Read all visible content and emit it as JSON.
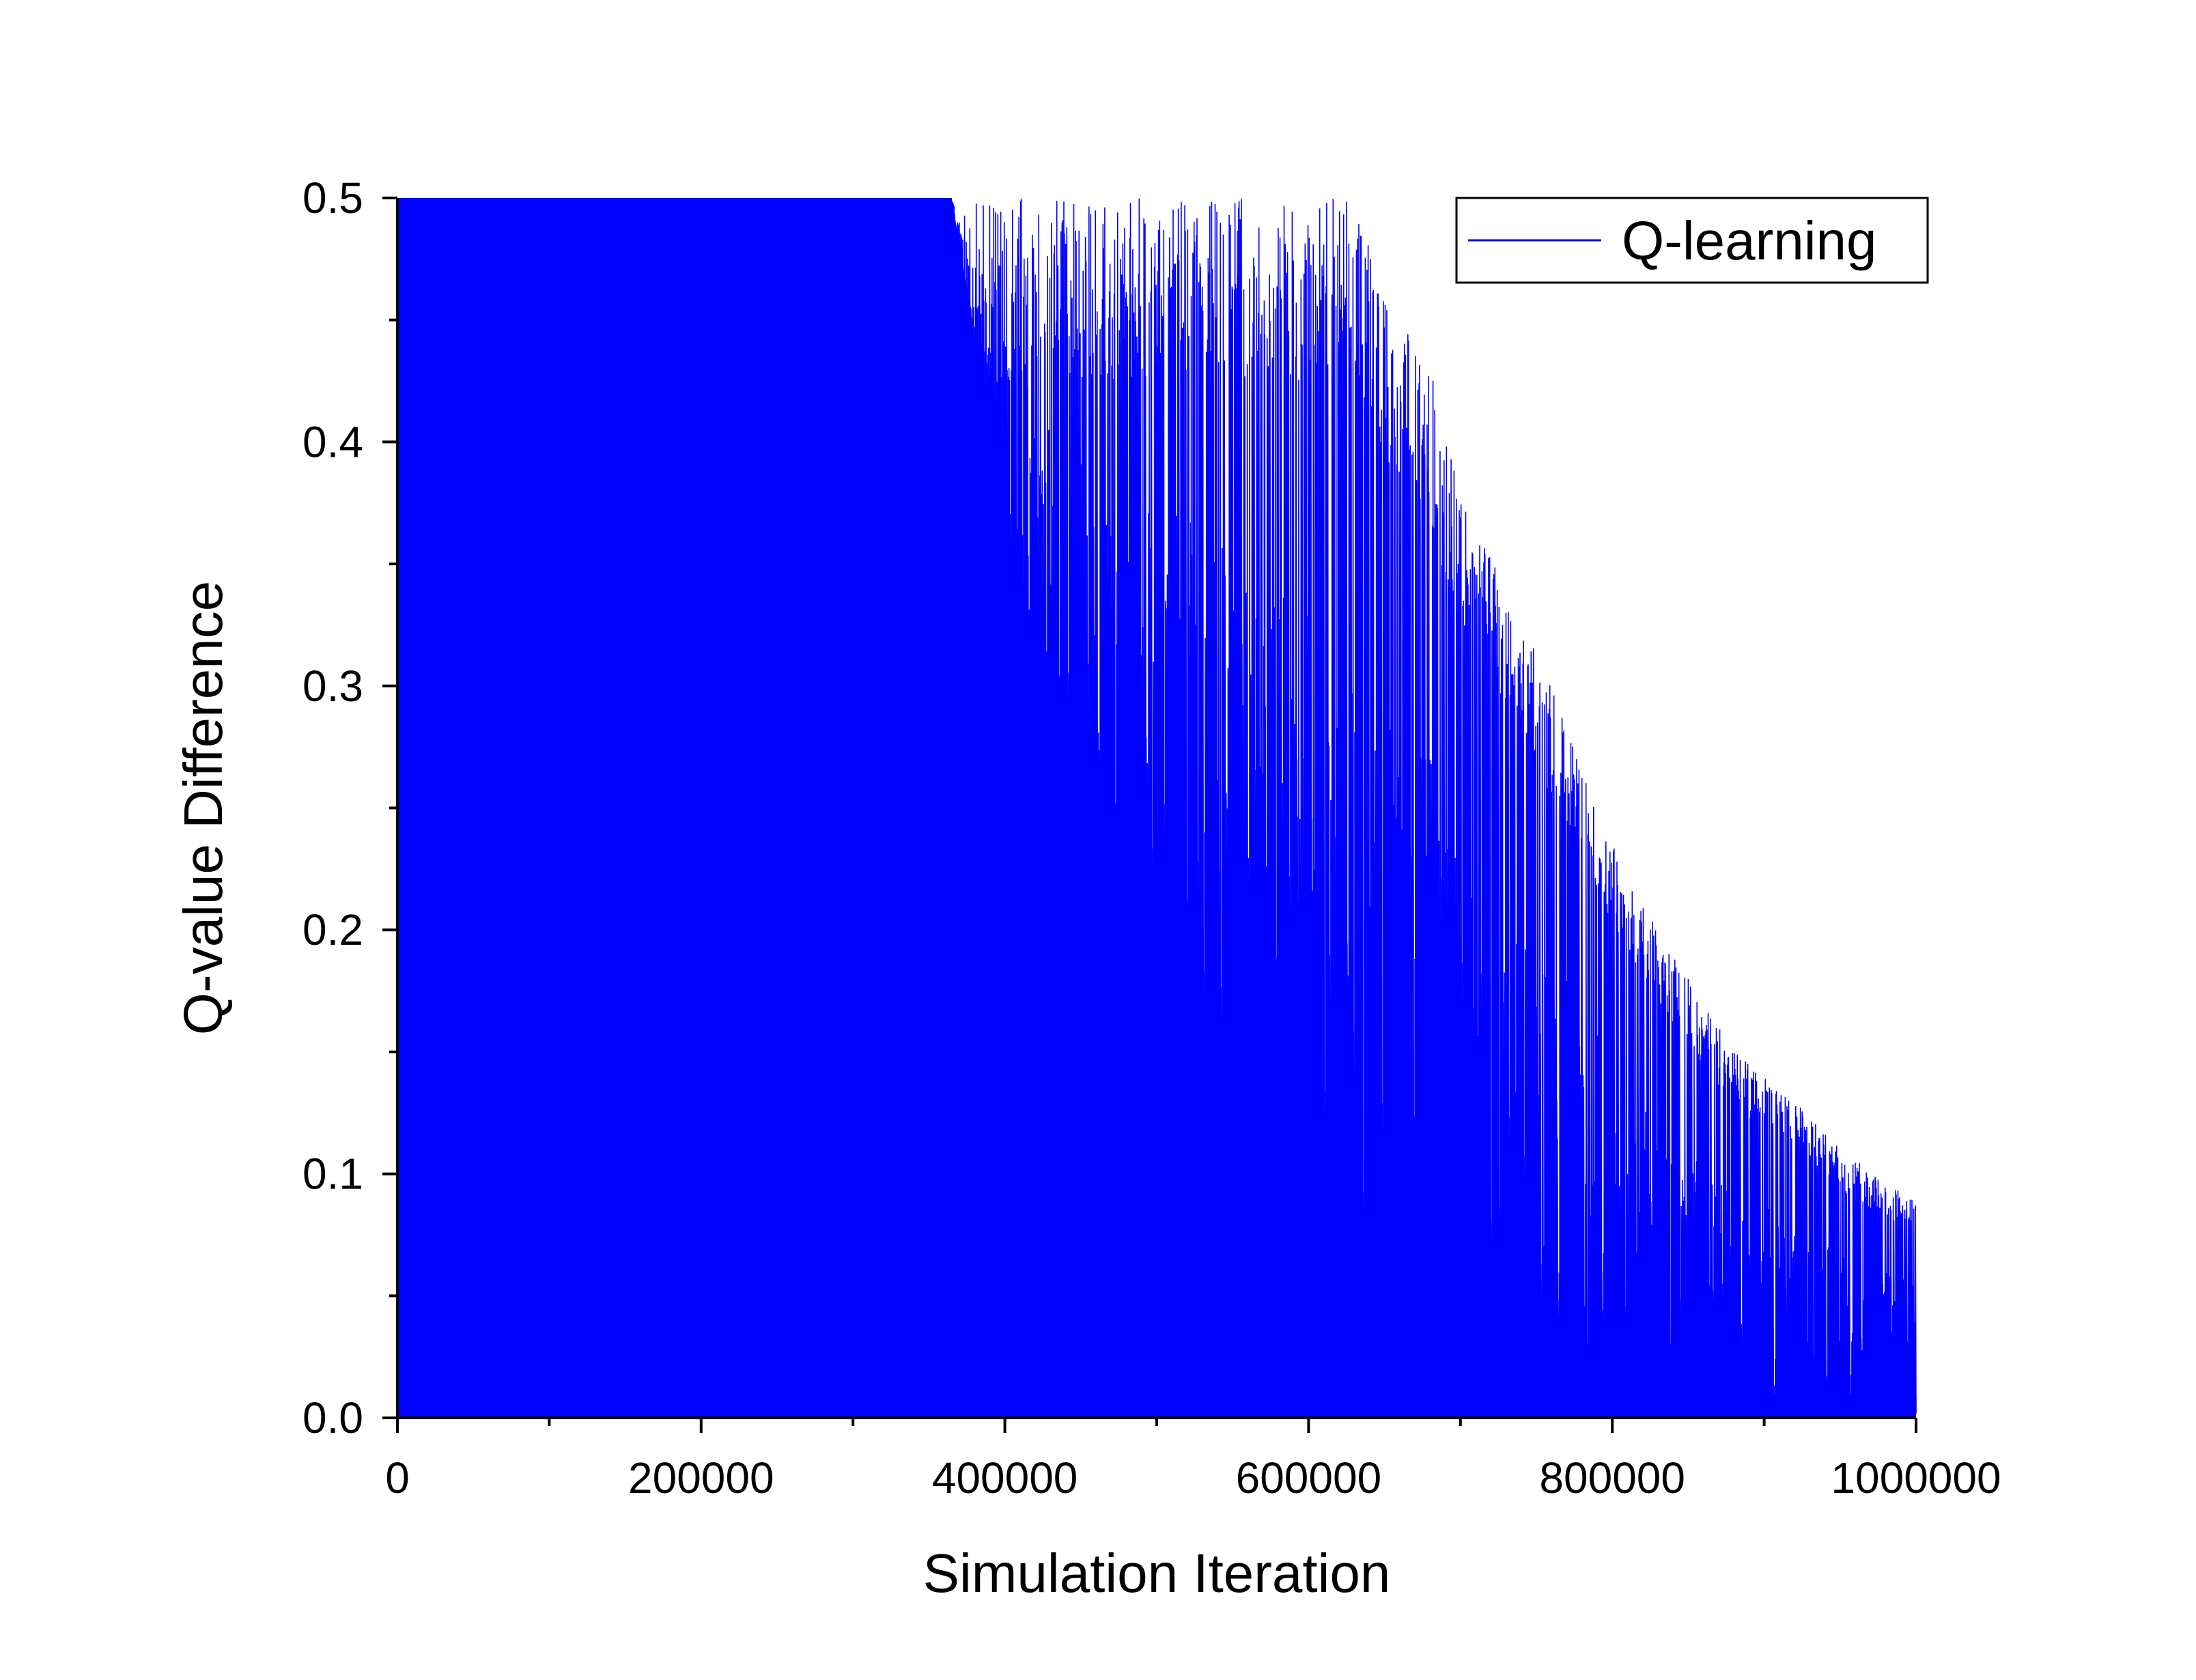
{
  "chart_data": {
    "type": "line",
    "xlabel": "Simulation Iteration",
    "ylabel": "Q-value Difference",
    "xlim": [
      0,
      1000000
    ],
    "ylim": [
      0,
      0.5
    ],
    "x_ticks": [
      0,
      200000,
      400000,
      600000,
      800000,
      1000000
    ],
    "x_tick_labels": [
      "0",
      "200000",
      "400000",
      "600000",
      "800000",
      "1000000"
    ],
    "y_ticks": [
      0.0,
      0.1,
      0.2,
      0.3,
      0.4,
      0.5
    ],
    "y_tick_labels": [
      "0.0",
      "0.1",
      "0.2",
      "0.3",
      "0.4",
      "0.5"
    ],
    "grid": false,
    "legend_position": "top-right",
    "series": [
      {
        "name": "Q-learning",
        "color": "#0000ff",
        "envelope": {
          "x": [
            0,
            365000,
            380000,
            400000,
            430000,
            460000,
            500000,
            520000,
            560000,
            600000,
            630000,
            650000,
            680000,
            700000,
            730000,
            760000,
            790000,
            820000,
            840000,
            860000,
            880000,
            920000,
            950000,
            980000,
            1000000
          ],
          "y": [
            0.5,
            0.5,
            0.5,
            0.5,
            0.5,
            0.5,
            0.5,
            0.5,
            0.5,
            0.5,
            0.5,
            0.46,
            0.43,
            0.38,
            0.34,
            0.3,
            0.25,
            0.21,
            0.19,
            0.17,
            0.15,
            0.13,
            0.11,
            0.097,
            0.09
          ]
        },
        "solid_fill_until": [
          {
            "x": 0,
            "y": 0.5
          },
          {
            "x": 365000,
            "y": 0.5
          },
          {
            "x": 430000,
            "y": 0.26
          },
          {
            "x": 500000,
            "y": 0.19
          },
          {
            "x": 560000,
            "y": 0.13
          },
          {
            "x": 600000,
            "y": 0.07
          },
          {
            "x": 640000,
            "y": 0.045
          },
          {
            "x": 700000,
            "y": 0.04
          },
          {
            "x": 760000,
            "y": 0.025
          },
          {
            "x": 820000,
            "y": 0.012
          },
          {
            "x": 900000,
            "y": 0.008
          },
          {
            "x": 1000000,
            "y": 0.004
          }
        ]
      }
    ]
  }
}
